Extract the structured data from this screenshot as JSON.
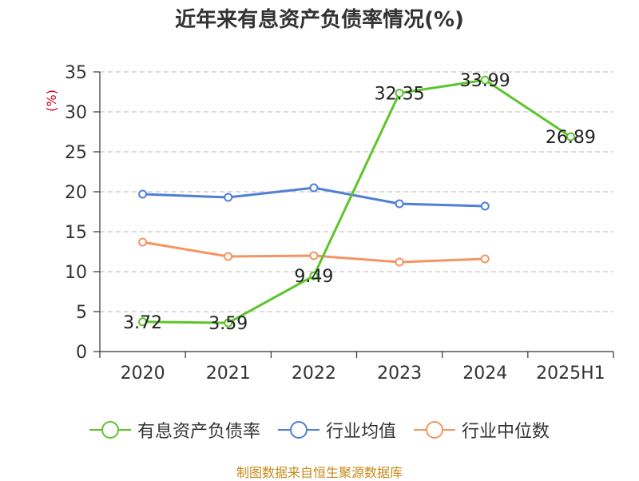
{
  "title": "近年来有息资产负债率情况(%)",
  "source": "制图数据来自恒生聚源数据库",
  "chart_data": {
    "type": "line",
    "title": "近年来有息资产负债率情况(%)",
    "ylabel": "(%)",
    "categories": [
      "2020",
      "2021",
      "2022",
      "2023",
      "2024",
      "2025H1"
    ],
    "ylim": [
      0,
      35
    ],
    "yticks": [
      0,
      5,
      10,
      15,
      20,
      25,
      30,
      35
    ],
    "grid": true,
    "legend_position": "bottom",
    "series": [
      {
        "name": "有息资产负债率",
        "color": "#5ec42b",
        "values": [
          3.72,
          3.59,
          9.49,
          32.35,
          33.99,
          26.89
        ],
        "labels": [
          "3.72",
          "3.59",
          "9.49",
          "32.35",
          "33.99",
          "26.89"
        ]
      },
      {
        "name": "行业均值",
        "color": "#4f7fd8",
        "values": [
          19.7,
          19.3,
          20.5,
          18.5,
          18.2,
          null
        ]
      },
      {
        "name": "行业中位数",
        "color": "#f59462",
        "values": [
          13.7,
          11.9,
          12.0,
          11.2,
          11.6,
          null
        ]
      }
    ]
  }
}
